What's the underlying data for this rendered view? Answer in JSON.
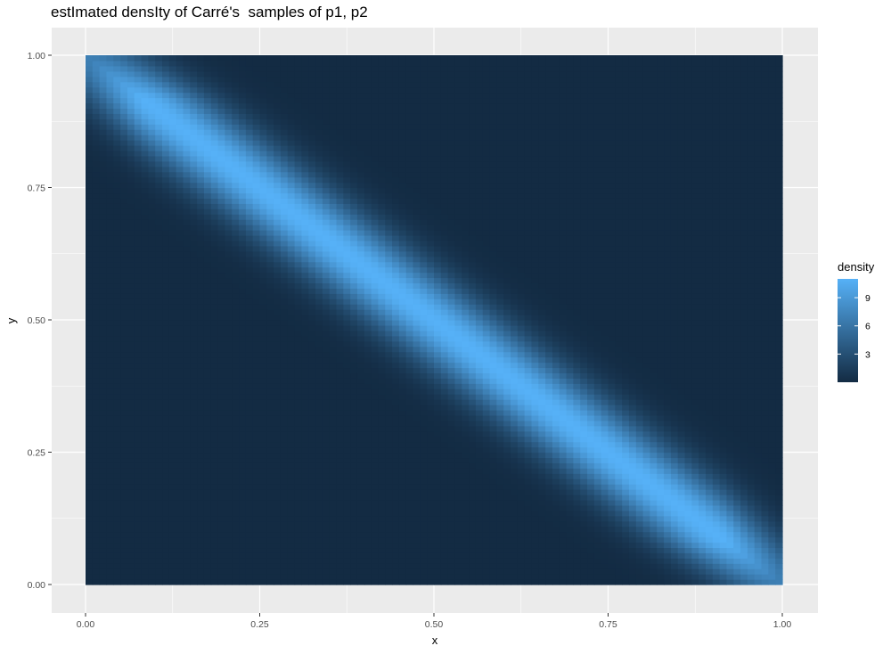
{
  "title": "estImated densIty of Carré's  samples of p1, p2",
  "chart_data": {
    "type": "heatmap",
    "title": "estImated densIty of Carré's  samples of p1, p2",
    "xlabel": "x",
    "ylabel": "y",
    "xlim": [
      0,
      1
    ],
    "ylim": [
      0,
      1
    ],
    "x_ticks": [
      "0.00",
      "0.25",
      "0.50",
      "0.75",
      "1.00"
    ],
    "y_ticks": [
      "0.00",
      "0.25",
      "0.50",
      "0.75",
      "1.00"
    ],
    "x_tick_values": [
      0,
      0.25,
      0.5,
      0.75,
      1
    ],
    "y_tick_values": [
      0,
      0.25,
      0.5,
      0.75,
      1
    ],
    "grid": true,
    "fill": "density",
    "density_ridge": {
      "line": "y = 1 - x",
      "peak_density": 11,
      "half_width": 0.045
    },
    "colors": {
      "low": "#132B43",
      "high": "#56B1F7",
      "panel_bg": "#EBEBEB",
      "grid": "#FFFFFF"
    },
    "legend": {
      "title": "density",
      "position": "right",
      "breaks": [
        3,
        6,
        9
      ],
      "labels": [
        "3",
        "6",
        "9"
      ],
      "range": [
        0,
        11
      ]
    }
  }
}
